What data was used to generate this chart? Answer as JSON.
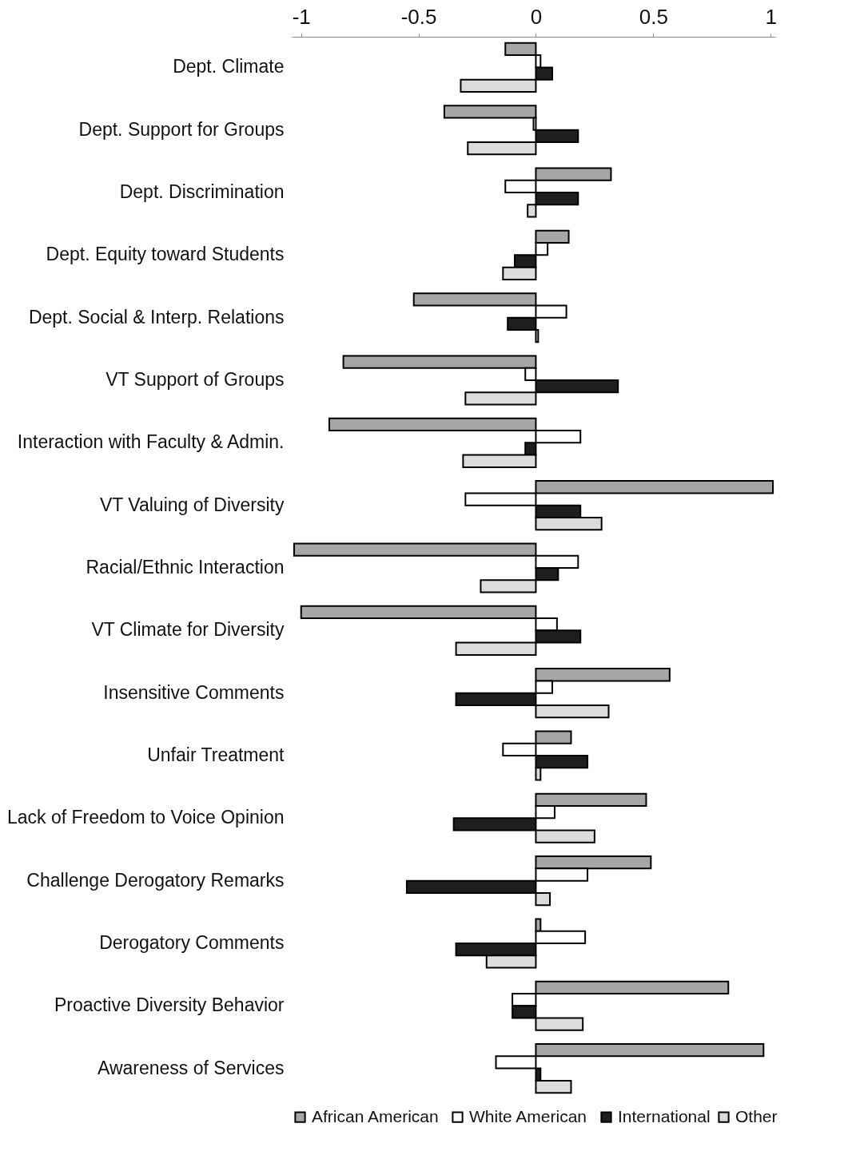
{
  "chart_data": {
    "type": "bar",
    "orientation": "horizontal",
    "categories": [
      "Dept. Climate",
      "Dept. Support for Groups",
      "Dept.  Discrimination",
      "Dept. Equity toward Students",
      "Dept. Social & Interp. Relations",
      "VT Support of Groups",
      "Interaction with Faculty & Admin.",
      "VT Valuing of Diversity",
      "Racial/Ethnic  Interaction",
      "VT Climate for Diversity",
      "Insensitive Comments",
      "Unfair  Treatment",
      "Lack of Freedom to Voice Opinion",
      "Challenge Derogatory Remarks",
      "Derogatory Comments",
      "Proactive  Diversity  Behavior",
      "Awareness of Services"
    ],
    "series": [
      {
        "name": "African  American",
        "color": "#a6a6a6",
        "values": [
          -0.13,
          -0.39,
          0.32,
          0.14,
          -0.52,
          -0.82,
          -0.88,
          1.01,
          -1.03,
          -1.0,
          0.57,
          0.15,
          0.47,
          0.49,
          0.02,
          0.82,
          0.97
        ]
      },
      {
        "name": "White  American",
        "color": "#ffffff",
        "values": [
          0.02,
          -0.01,
          -0.13,
          0.05,
          0.13,
          -0.045,
          0.19,
          -0.3,
          0.18,
          0.09,
          0.07,
          -0.14,
          0.08,
          0.22,
          0.21,
          -0.1,
          -0.17
        ]
      },
      {
        "name": "International",
        "color": "#1e1e1e",
        "values": [
          0.07,
          0.18,
          0.18,
          -0.09,
          -0.12,
          0.35,
          -0.045,
          0.19,
          0.095,
          0.19,
          -0.34,
          0.22,
          -0.35,
          -0.55,
          -0.34,
          -0.1,
          0.02
        ]
      },
      {
        "name": "Other",
        "color": "#dcdcdc",
        "values": [
          -0.32,
          -0.29,
          -0.035,
          -0.14,
          0.01,
          -0.3,
          -0.31,
          0.28,
          -0.235,
          -0.34,
          0.31,
          0.02,
          0.25,
          0.06,
          -0.21,
          0.2,
          0.15
        ]
      }
    ],
    "xlim": [
      -1.04,
      1.02
    ],
    "xticks": [
      -1,
      -0.5,
      0,
      0.5,
      1
    ],
    "grid": false,
    "legend": "bottom"
  }
}
